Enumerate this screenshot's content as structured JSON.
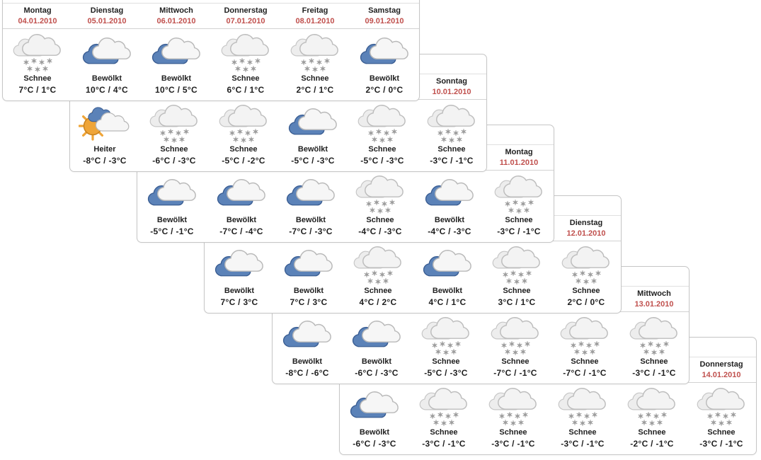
{
  "colors": {
    "date_red": "#c0504d",
    "day_text": "#1f1f1f",
    "panel_border": "#c6c6c6",
    "cloud_blue": "#5b82b8",
    "cloud_blue_edge": "#3a5d92",
    "cloud_white": "#f6f6f6",
    "cloud_white_edge": "#b9b9b9",
    "cloud_gray": "#ededed",
    "cloud_gray_edge": "#c6c6c6",
    "sun_orange": "#efa538",
    "sun_edge": "#c8821f",
    "snowflake_gray": "#9e9e9e"
  },
  "panels": [
    {
      "days": [
        {
          "day": "Montag",
          "date": "04.01.2010",
          "icon": "snow-icon",
          "condition": "Schnee",
          "temperature": "7°C / 1°C"
        },
        {
          "day": "Dienstag",
          "date": "05.01.2010",
          "icon": "cloudy-icon",
          "condition": "Bewölkt",
          "temperature": "10°C / 4°C"
        },
        {
          "day": "Mittwoch",
          "date": "06.01.2010",
          "icon": "cloudy-icon",
          "condition": "Bewölkt",
          "temperature": "10°C / 5°C"
        },
        {
          "day": "Donnerstag",
          "date": "07.01.2010",
          "icon": "snow-icon",
          "condition": "Schnee",
          "temperature": "6°C / 1°C"
        },
        {
          "day": "Freitag",
          "date": "08.01.2010",
          "icon": "snow-icon",
          "condition": "Schnee",
          "temperature": "2°C / 1°C"
        },
        {
          "day": "Samstag",
          "date": "09.01.2010",
          "icon": "cloudy-icon",
          "condition": "Bewölkt",
          "temperature": "2°C / 0°C"
        }
      ]
    },
    {
      "days": [
        {
          "day": "",
          "date": "",
          "icon": "partly-sunny-icon",
          "condition": "Heiter",
          "temperature": "-8°C / -3°C"
        },
        {
          "day": "",
          "date": "",
          "icon": "snow-icon",
          "condition": "Schnee",
          "temperature": "-6°C / -3°C"
        },
        {
          "day": "",
          "date": "",
          "icon": "snow-icon",
          "condition": "Schnee",
          "temperature": "-5°C / -2°C"
        },
        {
          "day": "",
          "date": "",
          "icon": "cloudy-icon",
          "condition": "Bewölkt",
          "temperature": "-5°C / -3°C"
        },
        {
          "day": "",
          "date": "",
          "icon": "snow-icon",
          "condition": "Schnee",
          "temperature": "-5°C / -3°C"
        },
        {
          "day": "Sonntag",
          "date": "10.01.2010",
          "icon": "snow-icon",
          "condition": "Schnee",
          "temperature": "-3°C / -1°C"
        }
      ]
    },
    {
      "days": [
        {
          "day": "",
          "date": "",
          "icon": "cloudy-icon",
          "condition": "Bewölkt",
          "temperature": "-5°C / -1°C"
        },
        {
          "day": "",
          "date": "",
          "icon": "cloudy-icon",
          "condition": "Bewölkt",
          "temperature": "-7°C / -4°C"
        },
        {
          "day": "",
          "date": "",
          "icon": "cloudy-icon",
          "condition": "Bewölkt",
          "temperature": "-7°C / -3°C"
        },
        {
          "day": "",
          "date": "",
          "icon": "snow-icon",
          "condition": "Schnee",
          "temperature": "-4°C / -3°C"
        },
        {
          "day": "",
          "date": "",
          "icon": "cloudy-icon",
          "condition": "Bewölkt",
          "temperature": "-4°C / -3°C"
        },
        {
          "day": "Montag",
          "date": "11.01.2010",
          "icon": "snow-icon",
          "condition": "Schnee",
          "temperature": "-3°C / -1°C"
        }
      ]
    },
    {
      "days": [
        {
          "day": "",
          "date": "",
          "icon": "cloudy-icon",
          "condition": "Bewölkt",
          "temperature": "7°C / 3°C"
        },
        {
          "day": "",
          "date": "",
          "icon": "cloudy-icon",
          "condition": "Bewölkt",
          "temperature": "7°C / 3°C"
        },
        {
          "day": "",
          "date": "",
          "icon": "snow-icon",
          "condition": "Schnee",
          "temperature": "4°C / 2°C"
        },
        {
          "day": "",
          "date": "",
          "icon": "cloudy-icon",
          "condition": "Bewölkt",
          "temperature": "4°C / 1°C"
        },
        {
          "day": "",
          "date": "",
          "icon": "snow-icon",
          "condition": "Schnee",
          "temperature": "3°C / 1°C"
        },
        {
          "day": "Dienstag",
          "date": "12.01.2010",
          "icon": "snow-icon",
          "condition": "Schnee",
          "temperature": "2°C / 0°C"
        }
      ]
    },
    {
      "days": [
        {
          "day": "",
          "date": "",
          "icon": "cloudy-icon",
          "condition": "Bewölkt",
          "temperature": "-8°C / -6°C"
        },
        {
          "day": "",
          "date": "",
          "icon": "cloudy-icon",
          "condition": "Bewölkt",
          "temperature": "-6°C / -3°C"
        },
        {
          "day": "",
          "date": "",
          "icon": "snow-icon",
          "condition": "Schnee",
          "temperature": "-5°C / -3°C"
        },
        {
          "day": "",
          "date": "",
          "icon": "snow-icon",
          "condition": "Schnee",
          "temperature": "-7°C / -1°C"
        },
        {
          "day": "",
          "date": "",
          "icon": "snow-icon",
          "condition": "Schnee",
          "temperature": "-7°C / -1°C"
        },
        {
          "day": "Mittwoch",
          "date": "13.01.2010",
          "icon": "snow-icon",
          "condition": "Schnee",
          "temperature": "-3°C / -1°C"
        }
      ]
    },
    {
      "days": [
        {
          "day": "",
          "date": "",
          "icon": "cloudy-icon",
          "condition": "Bewölkt",
          "temperature": "-6°C / -3°C"
        },
        {
          "day": "",
          "date": "",
          "icon": "snow-icon",
          "condition": "Schnee",
          "temperature": "-3°C / -1°C"
        },
        {
          "day": "",
          "date": "",
          "icon": "snow-icon",
          "condition": "Schnee",
          "temperature": "-3°C / -1°C"
        },
        {
          "day": "",
          "date": "",
          "icon": "snow-icon",
          "condition": "Schnee",
          "temperature": "-3°C / -1°C"
        },
        {
          "day": "",
          "date": "",
          "icon": "snow-icon",
          "condition": "Schnee",
          "temperature": "-2°C / -1°C"
        },
        {
          "day": "Donnerstag",
          "date": "14.01.2010",
          "icon": "snow-icon",
          "condition": "Schnee",
          "temperature": "-3°C / -1°C"
        }
      ]
    }
  ]
}
